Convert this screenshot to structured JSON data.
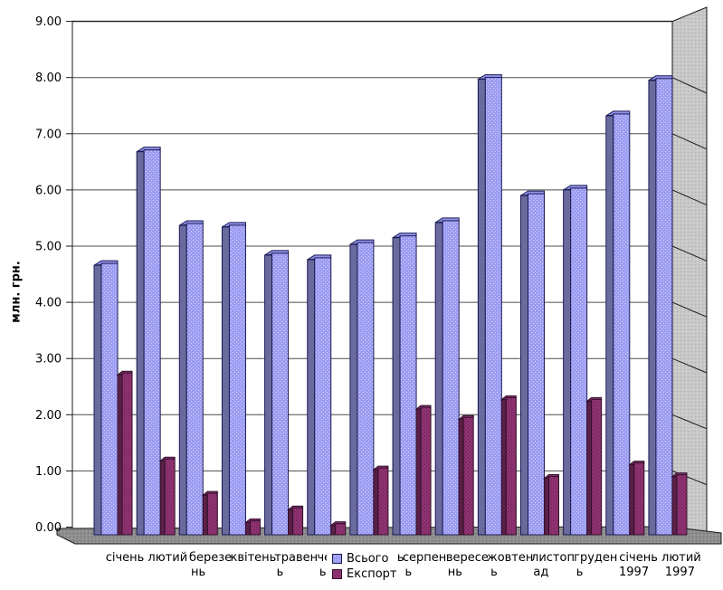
{
  "chart_data": {
    "type": "bar",
    "variant": "3d-column-perspective",
    "title": "",
    "xlabel": "",
    "ylabel": "млн. грн.",
    "categories": [
      "січень",
      "лютий",
      "березень",
      "квітень",
      "травень",
      "червень",
      "липень",
      "серпень",
      "вересень",
      "жовтень",
      "листопад",
      "грудень",
      "січень 1997",
      "лютий 1997"
    ],
    "category_label_lines": [
      [
        "січень"
      ],
      [
        "лютий"
      ],
      [
        "березе",
        "нь"
      ],
      [
        "квітень"
      ],
      [
        "травен",
        "ь"
      ],
      [
        "червен",
        "ь"
      ],
      [
        "липень"
      ],
      [
        "серпен",
        "ь"
      ],
      [
        "вересе",
        "нь"
      ],
      [
        "жовтен",
        "ь"
      ],
      [
        "листоп",
        "ад"
      ],
      [
        "груден",
        "ь"
      ],
      [
        "січень",
        "1997"
      ],
      [
        "лютий",
        "1997"
      ]
    ],
    "series": [
      {
        "name": "Всього",
        "color": "#9999FF",
        "values": [
          4.66,
          6.68,
          5.37,
          5.34,
          4.84,
          4.76,
          5.03,
          5.15,
          5.42,
          7.97,
          5.9,
          6.0,
          7.32,
          7.95
        ]
      },
      {
        "name": "Експорт",
        "color": "#993366",
        "values": [
          2.71,
          1.18,
          0.57,
          0.08,
          0.31,
          0.03,
          1.02,
          2.1,
          1.92,
          2.27,
          0.87,
          2.24,
          1.11,
          0.9
        ]
      }
    ],
    "ylim": [
      0,
      9
    ],
    "ytick_step": 1,
    "ytick_labels": [
      "0.00",
      "1.00",
      "2.00",
      "3.00",
      "4.00",
      "5.00",
      "6.00",
      "7.00",
      "8.00",
      "9.00"
    ],
    "grid": true,
    "legend_position": "bottom-center"
  },
  "legend": {
    "total": "Всього",
    "export": "Експорт"
  },
  "colors": {
    "total_front": "#9c9cf2",
    "total_dot": "#d2d2ff",
    "total_side": "#6a6a9e",
    "total_top": "#9191ec",
    "total_outline": "#1b1b52",
    "export_front": "#8f3272",
    "export_dot": "#5e1e4b",
    "export_side": "#5c1f49",
    "export_top": "#8a2f6f",
    "export_outline": "#30102a",
    "wall": "#c7c7c7",
    "floor": "#8e8e8e",
    "gridline": "#4d4d4d",
    "axis": "#1a1a1a",
    "background": "#ffffff"
  }
}
